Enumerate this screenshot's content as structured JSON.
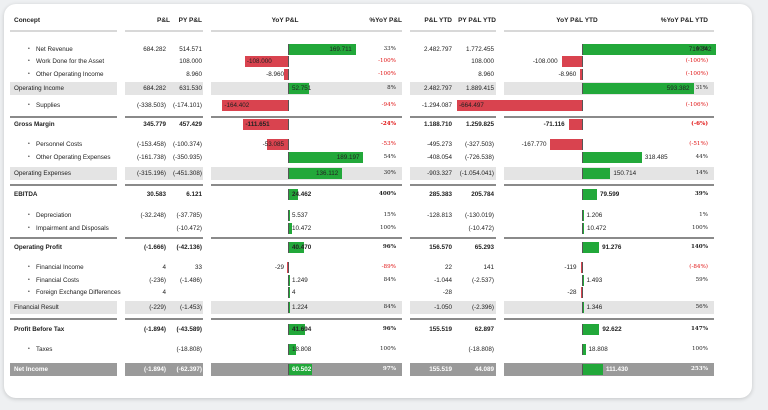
{
  "headers": {
    "concept": "Concept",
    "pl": "P&L",
    "py_pl": "PY P&L",
    "yoy_pl": "YoY P&L",
    "pct_yoy_pl": "%YoY P&L",
    "pl_ytd": "P&L YTD",
    "py_pl_ytd": "PY P&L YTD",
    "yoy_pl_ytd": "YoY P&L YTD",
    "pct_yoy_pl_ytd": "%YoY P&L YTD"
  },
  "rows": [
    {
      "label": "Net Revenue",
      "pl": "684.282",
      "py": "514.571",
      "yoy": "169.711",
      "pct": "33%",
      "ytd": "2.482.797",
      "py_ytd": "1.772.455",
      "yoy_ytd": "710.342",
      "pct_ytd": "40%"
    },
    {
      "label": "Work Done for the Asset",
      "pl": "",
      "py": "108.000",
      "yoy": "-108.000",
      "pct": "-100%",
      "ytd": "",
      "py_ytd": "108.000",
      "yoy_ytd": "-108.000",
      "pct_ytd": "(-100%)"
    },
    {
      "label": "Other Operating Income",
      "pl": "",
      "py": "8.960",
      "yoy": "-8.960",
      "pct": "-100%",
      "ytd": "",
      "py_ytd": "8.960",
      "yoy_ytd": "-8.960",
      "pct_ytd": "(-100%)"
    },
    {
      "label": "Operating Income",
      "pl": "684.282",
      "py": "631.530",
      "yoy": "52.751",
      "pct": "8%",
      "ytd": "2.482.797",
      "py_ytd": "1.889.415",
      "yoy_ytd": "593.382",
      "pct_ytd": "31%"
    },
    {
      "label": "Supplies",
      "pl": "(-338.503)",
      "py": "(-174.101)",
      "yoy": "-164.402",
      "pct": "-94%",
      "ytd": "-1.294.087",
      "py_ytd": "(-629.590)",
      "yoy_ytd": "-664.497",
      "pct_ytd": "(-106%)"
    },
    {
      "label": "Gross Margin",
      "pl": "345.779",
      "py": "457.429",
      "yoy": "-111.651",
      "pct": "-24%",
      "ytd": "1.188.710",
      "py_ytd": "1.259.825",
      "yoy_ytd": "-71.116",
      "pct_ytd": "(-6%)"
    },
    {
      "label": "Personnel Costs",
      "pl": "(-153.458)",
      "py": "(-100.374)",
      "yoy": "-53.085",
      "pct": "-53%",
      "ytd": "-495.273",
      "py_ytd": "(-327.503)",
      "yoy_ytd": "-167.770",
      "pct_ytd": "(-51%)"
    },
    {
      "label": "Other Operating Expenses",
      "pl": "(-161.738)",
      "py": "(-350.935)",
      "yoy": "189.197",
      "pct": "54%",
      "ytd": "-408.054",
      "py_ytd": "(-726.538)",
      "yoy_ytd": "318.485",
      "pct_ytd": "44%"
    },
    {
      "label": "Operating Expenses",
      "pl": "(-315.196)",
      "py": "(-451.308)",
      "yoy": "136.112",
      "pct": "30%",
      "ytd": "-903.327",
      "py_ytd": "(-1.054.041)",
      "yoy_ytd": "150.714",
      "pct_ytd": "14%"
    },
    {
      "label": "EBITDA",
      "pl": "30.583",
      "py": "6.121",
      "yoy": "24.462",
      "pct": "400%",
      "ytd": "285.383",
      "py_ytd": "205.784",
      "yoy_ytd": "79.599",
      "pct_ytd": "39%"
    },
    {
      "label": "Depreciation",
      "pl": "(-32.248)",
      "py": "(-37.785)",
      "yoy": "5.537",
      "pct": "15%",
      "ytd": "-128.813",
      "py_ytd": "(-130.019)",
      "yoy_ytd": "1.206",
      "pct_ytd": "1%"
    },
    {
      "label": "Impairment and Disposals",
      "pl": "",
      "py": "(-10.472)",
      "yoy": "10.472",
      "pct": "100%",
      "ytd": "",
      "py_ytd": "(-10.472)",
      "yoy_ytd": "10.472",
      "pct_ytd": "100%"
    },
    {
      "label": "Operating Profit",
      "pl": "(-1.666)",
      "py": "(-42.136)",
      "yoy": "40.470",
      "pct": "96%",
      "ytd": "156.570",
      "py_ytd": "65.293",
      "yoy_ytd": "91.276",
      "pct_ytd": "140%"
    },
    {
      "label": "Financial Income",
      "pl": "4",
      "py": "33",
      "yoy": "-29",
      "pct": "-89%",
      "ytd": "22",
      "py_ytd": "141",
      "yoy_ytd": "-119",
      "pct_ytd": "(-84%)"
    },
    {
      "label": "Financial Costs",
      "pl": "(-236)",
      "py": "(-1.486)",
      "yoy": "1.249",
      "pct": "84%",
      "ytd": "-1.044",
      "py_ytd": "(-2.537)",
      "yoy_ytd": "1.493",
      "pct_ytd": "59%"
    },
    {
      "label": "Foreign Exchange Differences",
      "pl": "4",
      "py": "",
      "yoy": "4",
      "pct": "",
      "ytd": "-28",
      "py_ytd": "",
      "yoy_ytd": "-28",
      "pct_ytd": ""
    },
    {
      "label": "Financial Result",
      "pl": "(-229)",
      "py": "(-1.453)",
      "yoy": "1.224",
      "pct": "84%",
      "ytd": "-1.050",
      "py_ytd": "(-2.396)",
      "yoy_ytd": "1.346",
      "pct_ytd": "56%"
    },
    {
      "label": "Profit Before Tax",
      "pl": "(-1.894)",
      "py": "(-43.589)",
      "yoy": "41.694",
      "pct": "96%",
      "ytd": "155.519",
      "py_ytd": "62.897",
      "yoy_ytd": "92.622",
      "pct_ytd": "147%"
    },
    {
      "label": "Taxes",
      "pl": "",
      "py": "(-18.808)",
      "yoy": "18.808",
      "pct": "100%",
      "ytd": "",
      "py_ytd": "(-18.808)",
      "yoy_ytd": "18.808",
      "pct_ytd": "100%"
    },
    {
      "label": "Net Income",
      "pl": "(-1.894)",
      "py": "(-62.397)",
      "yoy": "60.502",
      "pct": "97%",
      "ytd": "155.519",
      "py_ytd": "44.089",
      "yoy_ytd": "111.430",
      "pct_ytd": "253%"
    }
  ],
  "colors": {
    "positive": "#22a83a",
    "negative": "#d9434f",
    "negative_text": "#e01010",
    "band": "#e4e4e4",
    "total_band": "#9a9a9a"
  }
}
